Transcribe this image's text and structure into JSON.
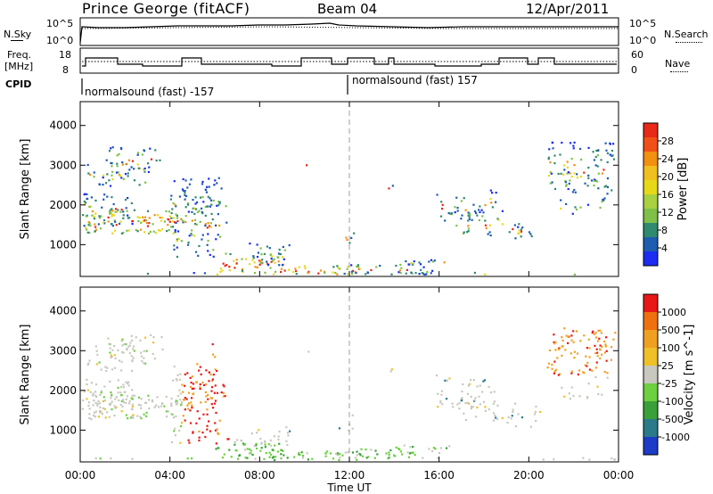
{
  "header": {
    "title": "Prince George (fitACF)",
    "beam": "Beam 04",
    "date": "12/Apr/2011"
  },
  "strip1": {
    "left_label": "N.Sky",
    "right_label": "N.Search",
    "ticks_left": [
      "10^5",
      "10^0"
    ],
    "ticks_right": [
      "10^5",
      "10^0"
    ]
  },
  "strip2": {
    "left_label_1": "Freq.",
    "left_label_2": "[MHz]",
    "right_label": "Nave",
    "ticks_left": [
      "18",
      "8"
    ],
    "ticks_right": [
      "60",
      "0"
    ]
  },
  "cpid": {
    "label": "CPID",
    "segment_1": "normalsound (fast) -157",
    "segment_2": "normalsound (fast) 157"
  },
  "chart_data": [
    {
      "type": "heatmap",
      "ylabel": "Slant Range [km]",
      "yticks": [
        "1000",
        "2000",
        "3000",
        "4000"
      ],
      "ylim": [
        200,
        4600
      ],
      "colorbar_label": "Power [dB]",
      "colorbar_ticks": [
        "4",
        "8",
        "12",
        "16",
        "20",
        "24",
        "28"
      ],
      "colors": [
        "#1c2cf0",
        "#1e5cb0",
        "#2f8a70",
        "#7ec048",
        "#e8d81a",
        "#f29010",
        "#e82818"
      ]
    },
    {
      "type": "heatmap",
      "ylabel": "Slant Range [km]",
      "yticks": [
        "1000",
        "2000",
        "3000",
        "4000"
      ],
      "ylim": [
        200,
        4600
      ],
      "colorbar_label": "Velocity [m s^-1]",
      "colorbar_ticks": [
        "1000",
        "500",
        "100",
        "25",
        "-25",
        "-100",
        "-500",
        "-1000"
      ],
      "colors": [
        "#1c3cc8",
        "#2a7a8a",
        "#3aa03a",
        "#6cd040",
        "#c8c8c0",
        "#f0c028",
        "#f0a020",
        "#f07010",
        "#e81818"
      ]
    }
  ],
  "x_axis": {
    "ticks": [
      "00:00",
      "04:00",
      "08:00",
      "12:00",
      "16:00",
      "20:00",
      "00:00"
    ],
    "label": "Time UT"
  }
}
